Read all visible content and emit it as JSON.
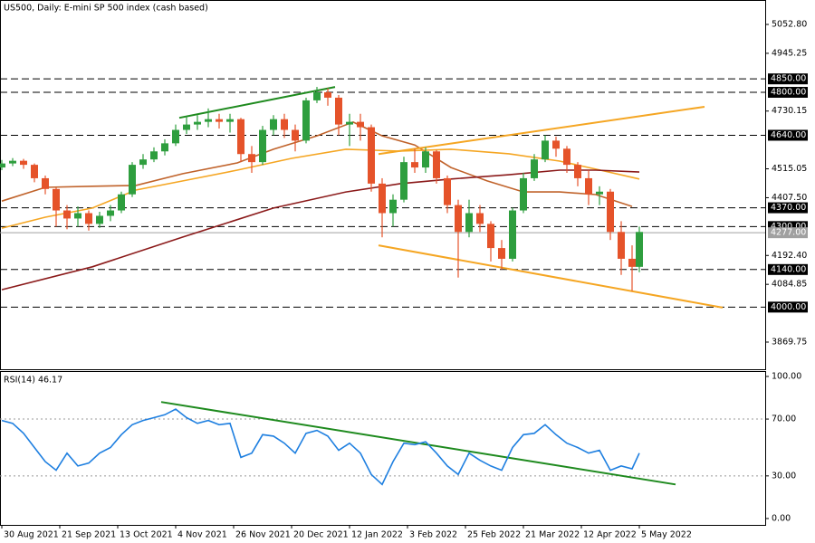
{
  "chart_data": [
    {
      "type": "candlestick",
      "title": "US500, Daily:  E-mini SP 500 index (cash based)",
      "x": [
        0,
        3,
        6,
        9,
        12,
        15,
        18,
        21,
        24,
        27,
        30,
        33,
        36,
        39,
        42,
        45,
        48,
        51,
        54,
        57,
        60,
        63,
        66,
        69,
        72,
        75,
        78,
        81,
        84,
        87,
        90,
        93,
        96,
        99,
        102,
        105,
        108,
        111,
        114,
        117,
        120,
        123,
        126,
        129,
        132,
        135,
        138,
        141,
        144,
        147,
        150,
        153,
        156,
        159,
        162,
        165,
        168,
        171,
        174,
        176
      ],
      "open": [
        4520,
        4535,
        4545,
        4530,
        4480,
        4440,
        4360,
        4330,
        4350,
        4310,
        4340,
        4360,
        4420,
        4530,
        4550,
        4580,
        4610,
        4660,
        4680,
        4690,
        4700,
        4690,
        4700,
        4570,
        4540,
        4660,
        4700,
        4660,
        4620,
        4770,
        4800,
        4780,
        4680,
        4690,
        4670,
        4460,
        4350,
        4400,
        4540,
        4520,
        4580,
        4480,
        4380,
        4280,
        4350,
        4310,
        4220,
        4180,
        4360,
        4480,
        4550,
        4620,
        4590,
        4530,
        4480,
        4420,
        4430,
        4280,
        4180,
        4150
      ],
      "high": [
        4548,
        4555,
        4552,
        4535,
        4490,
        4445,
        4380,
        4375,
        4360,
        4355,
        4380,
        4430,
        4540,
        4570,
        4595,
        4625,
        4680,
        4710,
        4715,
        4740,
        4720,
        4720,
        4705,
        4600,
        4675,
        4715,
        4720,
        4680,
        4780,
        4820,
        4815,
        4790,
        4720,
        4720,
        4680,
        4480,
        4420,
        4560,
        4590,
        4595,
        4585,
        4490,
        4400,
        4400,
        4380,
        4320,
        4250,
        4370,
        4500,
        4570,
        4640,
        4635,
        4600,
        4540,
        4510,
        4450,
        4440,
        4320,
        4230,
        4300
      ],
      "low": [
        4510,
        4525,
        4515,
        4465,
        4420,
        4300,
        4290,
        4300,
        4285,
        4295,
        4320,
        4350,
        4410,
        4515,
        4540,
        4565,
        4600,
        4645,
        4660,
        4670,
        4665,
        4650,
        4540,
        4500,
        4530,
        4640,
        4630,
        4580,
        4610,
        4760,
        4750,
        4640,
        4600,
        4620,
        4430,
        4260,
        4300,
        4390,
        4500,
        4500,
        4460,
        4350,
        4110,
        4260,
        4280,
        4170,
        4140,
        4170,
        4350,
        4470,
        4540,
        4560,
        4500,
        4450,
        4380,
        4380,
        4250,
        4120,
        4060,
        4130
      ],
      "close": [
        4535,
        4545,
        4530,
        4480,
        4440,
        4360,
        4330,
        4350,
        4310,
        4340,
        4360,
        4420,
        4530,
        4550,
        4580,
        4610,
        4660,
        4680,
        4690,
        4700,
        4690,
        4700,
        4570,
        4540,
        4660,
        4700,
        4660,
        4620,
        4770,
        4800,
        4780,
        4680,
        4690,
        4670,
        4460,
        4350,
        4400,
        4540,
        4520,
        4580,
        4480,
        4380,
        4280,
        4350,
        4310,
        4220,
        4180,
        4360,
        4480,
        4550,
        4620,
        4590,
        4530,
        4480,
        4420,
        4430,
        4280,
        4180,
        4150,
        4280
      ],
      "up_color": "#2e9e3e",
      "down_color": "#e5532a",
      "xlim": [
        -0.5,
        210.75
      ],
      "ylim": [
        3768.6,
        5143.8
      ],
      "yticks": [
        {
          "value": 5052.8,
          "label": "5052.80"
        },
        {
          "value": 4945.25,
          "label": "4945.25"
        },
        {
          "value": 4730.15,
          "label": "4730.15"
        },
        {
          "value": 4515.05,
          "label": "4515.05"
        },
        {
          "value": 4407.5,
          "label": "4407.50"
        },
        {
          "value": 4192.4,
          "label": "4192.40"
        },
        {
          "value": 4084.85,
          "label": "4084.85"
        },
        {
          "value": 3869.75,
          "label": "3869.75"
        }
      ],
      "lines": [
        {
          "color": "#c0622a",
          "x": [
            0,
            12,
            25,
            37,
            50,
            65,
            75,
            87,
            97,
            105,
            114,
            124,
            134,
            144,
            154,
            164,
            174
          ],
          "values": [
            4395,
            4446,
            4450,
            4453,
            4497,
            4537,
            4588,
            4638,
            4689,
            4638,
            4604,
            4520,
            4470,
            4429,
            4429,
            4419,
            4375
          ]
        },
        {
          "color": "#f5a623",
          "x": [
            0,
            12,
            25,
            37,
            50,
            65,
            80,
            95,
            110,
            124,
            140,
            154,
            164,
            176
          ],
          "values": [
            4294,
            4335,
            4369,
            4436,
            4470,
            4510,
            4554,
            4588,
            4581,
            4588,
            4571,
            4544,
            4514,
            4477
          ]
        },
        {
          "color": "#8b1a1a",
          "x": [
            0,
            25,
            50,
            75,
            95,
            110,
            124,
            140,
            154,
            164,
            176
          ],
          "values": [
            4065,
            4150,
            4261,
            4369,
            4429,
            4460,
            4477,
            4493,
            4510,
            4510,
            4503
          ]
        }
      ],
      "trendlines": [
        {
          "color": "#1e8a1e",
          "x": [
            49,
            92
          ],
          "values": [
            4705,
            4820
          ]
        },
        {
          "color": "#f5a623",
          "x": [
            104,
            194
          ],
          "values": [
            4570,
            4746
          ]
        },
        {
          "color": "#f5a623",
          "x": [
            104,
            199
          ],
          "values": [
            4230,
            3998
          ]
        }
      ],
      "levels": [
        {
          "value": 4850,
          "label": "4850.00"
        },
        {
          "value": 4800,
          "label": "4800.00"
        },
        {
          "value": 4640,
          "label": "4640.00"
        },
        {
          "value": 4370,
          "label": "4370.00"
        },
        {
          "value": 4300,
          "label": "4300.00"
        },
        {
          "value": 4140,
          "label": "4140.00"
        },
        {
          "value": 4000,
          "label": "4000.00"
        }
      ],
      "last_price": {
        "value": 4277,
        "label": "4277.00"
      }
    },
    {
      "type": "line",
      "title": "RSI(14) 46.17",
      "color": "#1e7fe0",
      "x": [
        0,
        3,
        6,
        9,
        12,
        15,
        18,
        21,
        24,
        27,
        30,
        33,
        36,
        39,
        42,
        45,
        48,
        51,
        54,
        57,
        60,
        63,
        66,
        69,
        72,
        75,
        78,
        81,
        84,
        87,
        90,
        93,
        96,
        99,
        102,
        105,
        108,
        111,
        114,
        117,
        120,
        123,
        126,
        129,
        132,
        135,
        138,
        141,
        144,
        147,
        150,
        153,
        156,
        159,
        162,
        165,
        168,
        171,
        174,
        176
      ],
      "values": [
        69,
        67,
        60,
        50,
        40,
        34,
        46,
        37,
        39,
        46,
        50,
        59,
        66,
        69,
        71,
        73,
        77,
        71,
        67,
        69,
        66,
        67,
        43,
        46,
        59,
        58,
        53,
        46,
        60,
        62,
        58,
        48,
        53,
        46,
        31,
        24,
        40,
        53,
        52,
        54,
        46,
        37,
        31,
        46,
        41,
        37,
        34,
        50,
        59,
        60,
        66,
        59,
        53,
        50,
        46,
        48,
        34,
        37,
        35,
        46
      ],
      "xlim": [
        -0.5,
        210.75
      ],
      "ylim": [
        -4.5,
        103.8
      ],
      "yticks": [
        {
          "value": 100,
          "label": "100.00"
        },
        {
          "value": 70,
          "label": "70.00"
        },
        {
          "value": 30,
          "label": "30.00"
        },
        {
          "value": 0,
          "label": "0.00"
        }
      ],
      "levels": [
        70,
        30
      ],
      "trendlines": [
        {
          "color": "#1e8a1e",
          "x": [
            44,
            186
          ],
          "values": [
            82,
            24
          ]
        }
      ],
      "xticks": [
        {
          "value": 0,
          "label": "30 Aug 2021"
        },
        {
          "value": 16,
          "label": "21 Sep 2021"
        },
        {
          "value": 32,
          "label": "13 Oct 2021"
        },
        {
          "value": 48,
          "label": "4 Nov 2021"
        },
        {
          "value": 64,
          "label": "26 Nov 2021"
        },
        {
          "value": 80,
          "label": "20 Dec 2021"
        },
        {
          "value": 96,
          "label": "12 Jan 2022"
        },
        {
          "value": 112,
          "label": "3 Feb 2022"
        },
        {
          "value": 128,
          "label": "25 Feb 2022"
        },
        {
          "value": 144,
          "label": "21 Mar 2022"
        },
        {
          "value": 160,
          "label": "12 Apr 2022"
        },
        {
          "value": 176,
          "label": "5 May 2022"
        }
      ]
    }
  ]
}
